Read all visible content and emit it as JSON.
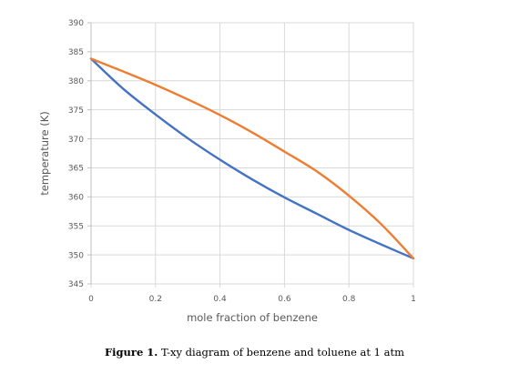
{
  "caption": {
    "label": "Figure 1.",
    "text": "T-xy diagram of benzene and toluene at 1 atm"
  },
  "colors": {
    "bubble": "#4472c4",
    "dew": "#ed7d31",
    "grid": "#d9d9d9",
    "tick_text": "#595959"
  },
  "chart_data": {
    "type": "line",
    "title": "",
    "xlabel": "mole fraction of benzene",
    "ylabel": "temperature (K)",
    "xlim": [
      0,
      1
    ],
    "ylim": [
      345,
      390
    ],
    "xticks": [
      0,
      0.2,
      0.4,
      0.6,
      0.8,
      1
    ],
    "xtick_labels": [
      "0",
      "0.2",
      "0.4",
      "0.6",
      "0.8",
      "1"
    ],
    "yticks": [
      345,
      350,
      355,
      360,
      365,
      370,
      375,
      380,
      385,
      390
    ],
    "ytick_labels": [
      "345",
      "350",
      "355",
      "360",
      "365",
      "370",
      "375",
      "380",
      "385",
      "390"
    ],
    "grid": true,
    "legend": false,
    "series": [
      {
        "color": "#4472c4",
        "x": [
          0,
          0.1,
          0.2,
          0.3,
          0.4,
          0.5,
          0.6,
          0.7,
          0.8,
          0.9,
          1
        ],
        "y": [
          383.8,
          378.6,
          374.2,
          370.1,
          366.4,
          363.0,
          359.9,
          357.1,
          354.3,
          351.8,
          349.4
        ]
      },
      {
        "color": "#ed7d31",
        "x": [
          0,
          0.1,
          0.2,
          0.3,
          0.4,
          0.5,
          0.6,
          0.7,
          0.8,
          0.9,
          1
        ],
        "y": [
          383.8,
          381.6,
          379.3,
          376.8,
          374.1,
          371.1,
          367.8,
          364.4,
          360.2,
          355.3,
          349.4
        ]
      }
    ]
  }
}
